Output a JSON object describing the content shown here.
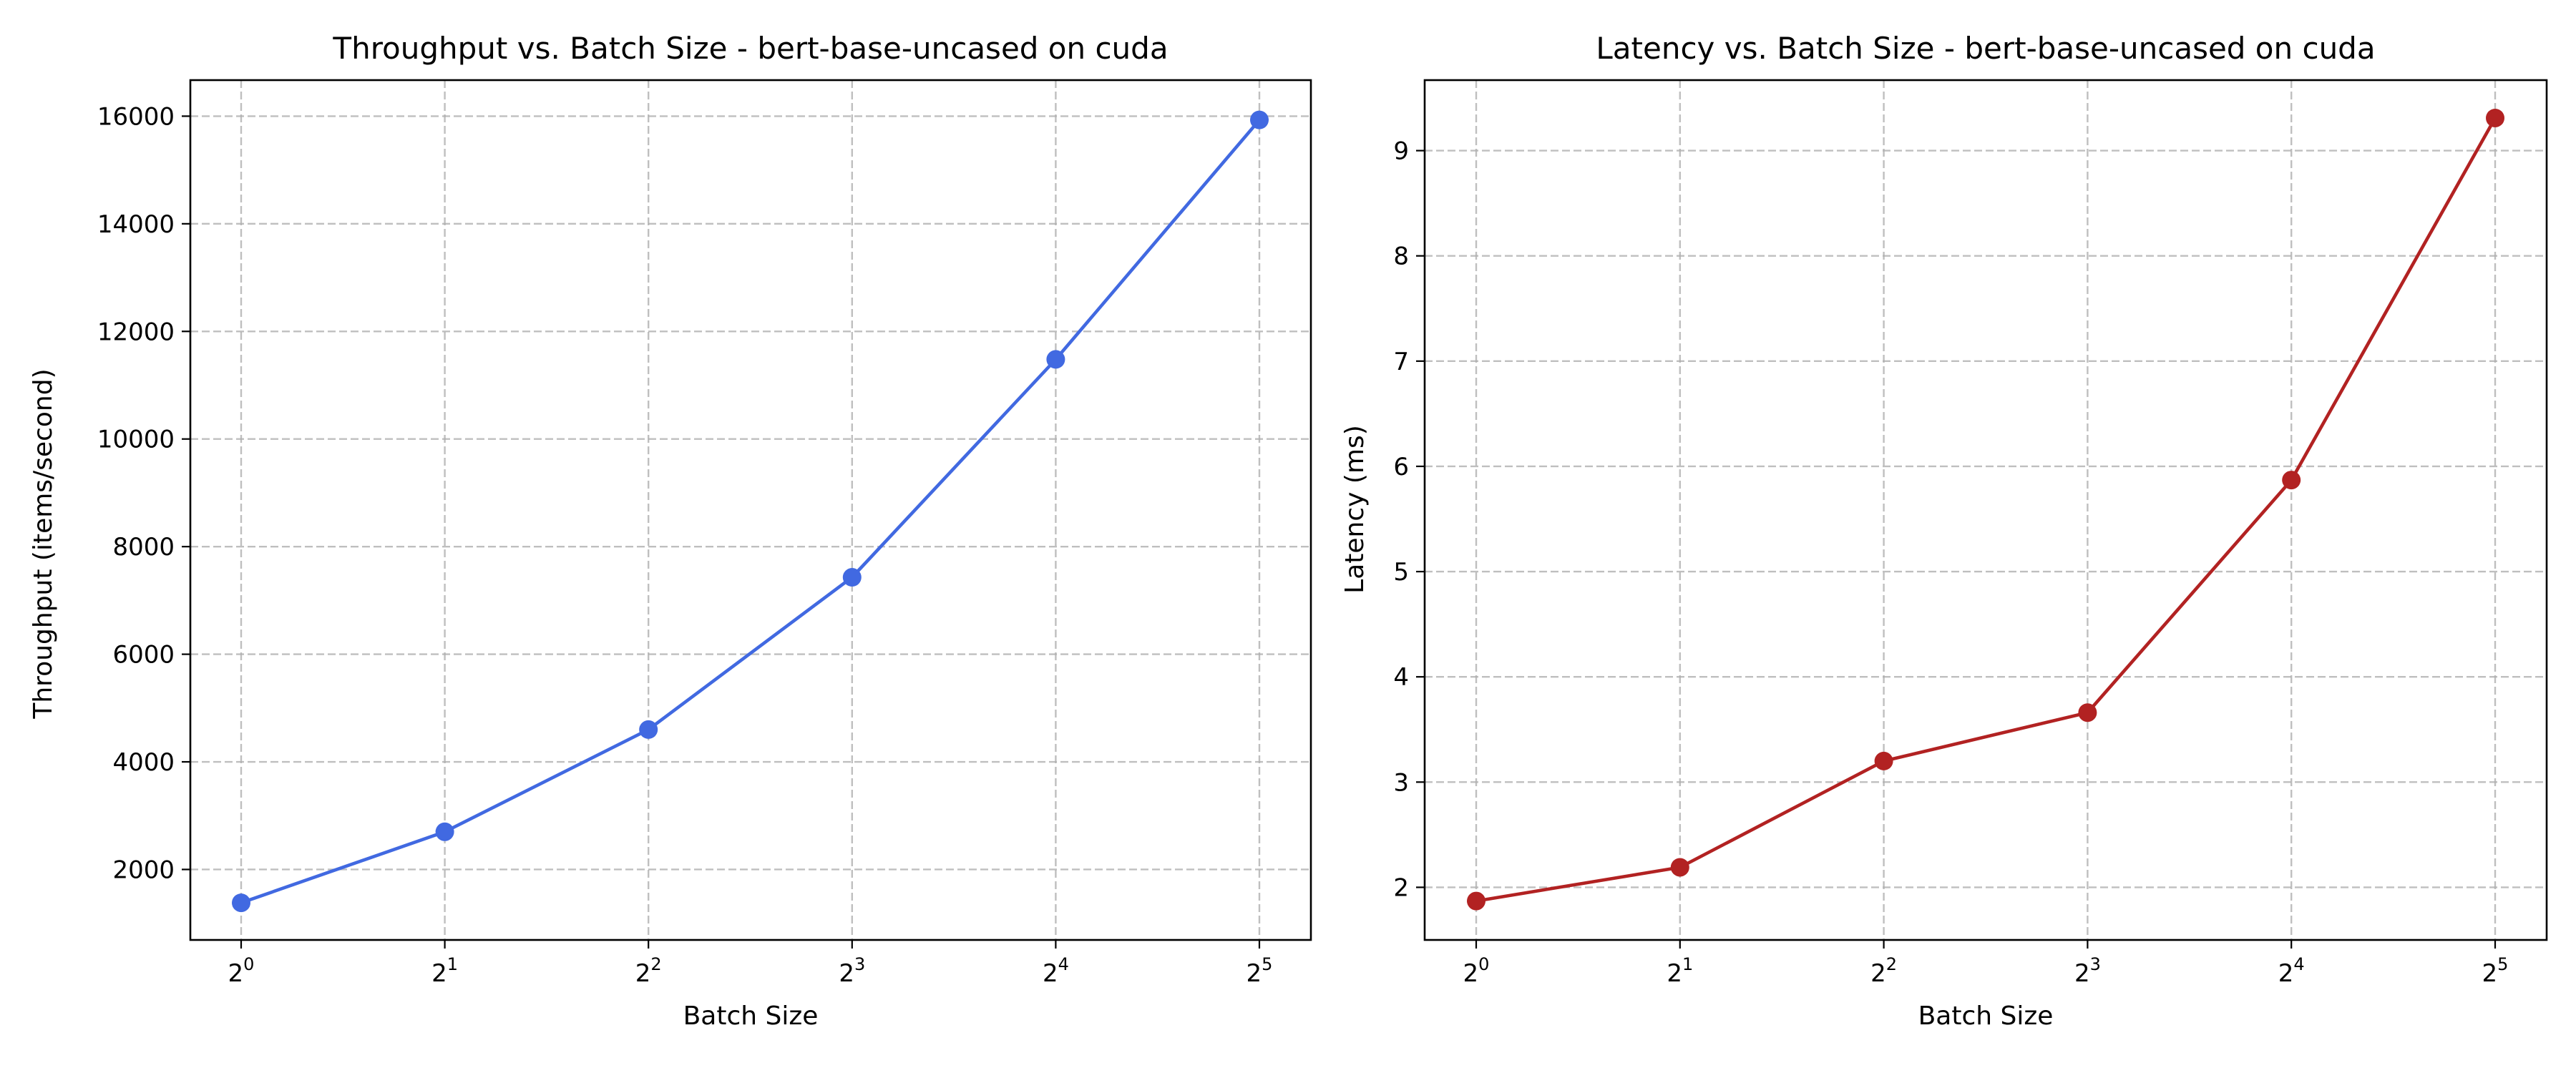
{
  "chart_data": [
    {
      "type": "line",
      "title": "Throughput vs. Batch Size - bert-base-uncased on cuda",
      "xlabel": "Batch Size",
      "ylabel": "Throughput (items/second)",
      "x_scale": "log2",
      "x": [
        1,
        2,
        4,
        8,
        16,
        32
      ],
      "x_tick_labels": [
        {
          "base": "2",
          "exp": "0"
        },
        {
          "base": "2",
          "exp": "1"
        },
        {
          "base": "2",
          "exp": "2"
        },
        {
          "base": "2",
          "exp": "3"
        },
        {
          "base": "2",
          "exp": "4"
        },
        {
          "base": "2",
          "exp": "5"
        }
      ],
      "y_ticks": [
        2000,
        4000,
        6000,
        8000,
        10000,
        12000,
        14000,
        16000
      ],
      "ylim": [
        690,
        16670
      ],
      "grid": true,
      "color": "#4169e1",
      "series": [
        {
          "values": [
            1380,
            2700,
            4600,
            7430,
            11480,
            15930
          ]
        }
      ]
    },
    {
      "type": "line",
      "title": "Latency vs. Batch Size - bert-base-uncased on cuda",
      "xlabel": "Batch Size",
      "ylabel": "Latency (ms)",
      "x_scale": "log2",
      "x": [
        1,
        2,
        4,
        8,
        16,
        32
      ],
      "x_tick_labels": [
        {
          "base": "2",
          "exp": "0"
        },
        {
          "base": "2",
          "exp": "1"
        },
        {
          "base": "2",
          "exp": "2"
        },
        {
          "base": "2",
          "exp": "3"
        },
        {
          "base": "2",
          "exp": "4"
        },
        {
          "base": "2",
          "exp": "5"
        }
      ],
      "y_ticks": [
        2,
        3,
        4,
        5,
        6,
        7,
        8,
        9
      ],
      "ylim": [
        1.5,
        9.67
      ],
      "grid": true,
      "color": "#b22222",
      "series": [
        {
          "values": [
            1.87,
            2.19,
            3.2,
            3.66,
            5.87,
            9.31
          ]
        }
      ]
    }
  ]
}
